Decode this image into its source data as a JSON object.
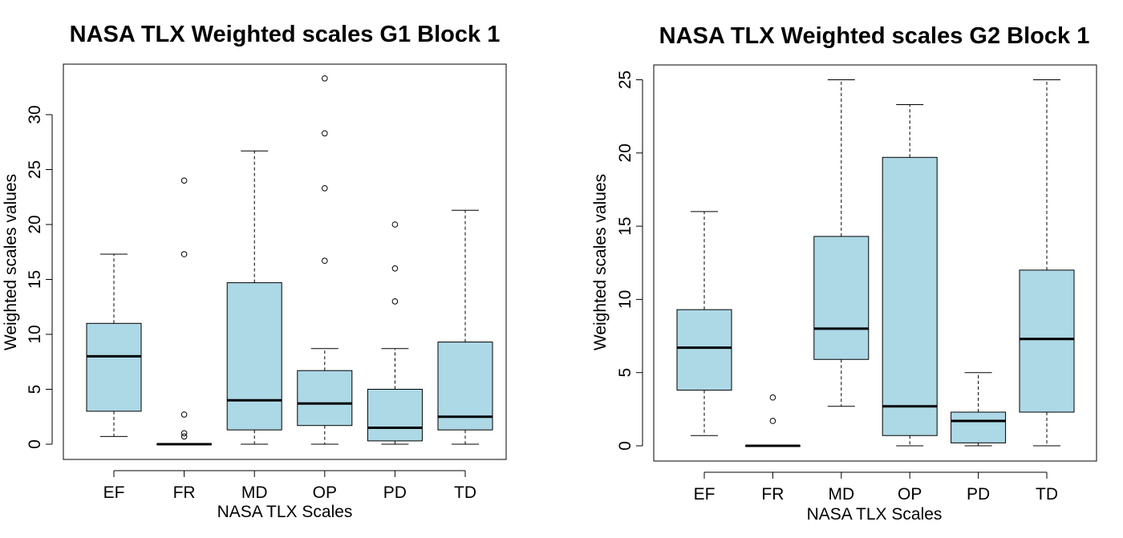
{
  "chart_data": [
    {
      "type": "boxplot",
      "title": "NASA TLX Weighted scales G1 Block 1",
      "xlabel": "NASA TLX Scales",
      "ylabel": "Weighted scales values",
      "ylim": [
        0,
        35
      ],
      "yticks": [
        0,
        5,
        10,
        15,
        20,
        25,
        30
      ],
      "box_color": "#add8e6",
      "categories": [
        "EF",
        "FR",
        "MD",
        "OP",
        "PD",
        "TD"
      ],
      "boxes": [
        {
          "category": "EF",
          "whisker_low": 0.7,
          "q1": 3.0,
          "median": 8.0,
          "q3": 11.0,
          "whisker_high": 17.3,
          "outliers": []
        },
        {
          "category": "FR",
          "whisker_low": 0,
          "q1": 0,
          "median": 0,
          "q3": 0,
          "whisker_high": 0,
          "outliers": [
            0.7,
            1.0,
            2.7,
            17.3,
            24.0
          ]
        },
        {
          "category": "MD",
          "whisker_low": 0,
          "q1": 1.3,
          "median": 4.0,
          "q3": 14.7,
          "whisker_high": 26.7,
          "outliers": []
        },
        {
          "category": "OP",
          "whisker_low": 0,
          "q1": 1.7,
          "median": 3.7,
          "q3": 6.7,
          "whisker_high": 8.7,
          "outliers": [
            16.7,
            23.3,
            28.3,
            33.3
          ]
        },
        {
          "category": "PD",
          "whisker_low": 0,
          "q1": 0.3,
          "median": 1.5,
          "q3": 5.0,
          "whisker_high": 8.7,
          "outliers": [
            13.0,
            16.0,
            20.0
          ]
        },
        {
          "category": "TD",
          "whisker_low": 0,
          "q1": 1.3,
          "median": 2.5,
          "q3": 9.3,
          "whisker_high": 21.3,
          "outliers": []
        }
      ]
    },
    {
      "type": "boxplot",
      "title": "NASA TLX Weighted scales G2 Block 1",
      "xlabel": "NASA TLX Scales",
      "ylabel": "Weighted scales values",
      "ylim": [
        0,
        25
      ],
      "yticks": [
        0,
        5,
        10,
        15,
        20,
        25
      ],
      "box_color": "#add8e6",
      "categories": [
        "EF",
        "FR",
        "MD",
        "OP",
        "PD",
        "TD"
      ],
      "boxes": [
        {
          "category": "EF",
          "whisker_low": 0.7,
          "q1": 3.8,
          "median": 6.7,
          "q3": 9.3,
          "whisker_high": 16.0,
          "outliers": []
        },
        {
          "category": "FR",
          "whisker_low": 0,
          "q1": 0,
          "median": 0,
          "q3": 0,
          "whisker_high": 0,
          "outliers": [
            1.7,
            3.3
          ]
        },
        {
          "category": "MD",
          "whisker_low": 2.7,
          "q1": 5.9,
          "median": 8.0,
          "q3": 14.3,
          "whisker_high": 25.0,
          "outliers": []
        },
        {
          "category": "OP",
          "whisker_low": 0,
          "q1": 0.7,
          "median": 2.7,
          "q3": 19.7,
          "whisker_high": 23.3,
          "outliers": []
        },
        {
          "category": "PD",
          "whisker_low": 0,
          "q1": 0.2,
          "median": 1.7,
          "q3": 2.3,
          "whisker_high": 5.0,
          "outliers": []
        },
        {
          "category": "TD",
          "whisker_low": 0,
          "q1": 2.3,
          "median": 7.3,
          "q3": 12.0,
          "whisker_high": 25.0,
          "outliers": []
        }
      ]
    }
  ]
}
